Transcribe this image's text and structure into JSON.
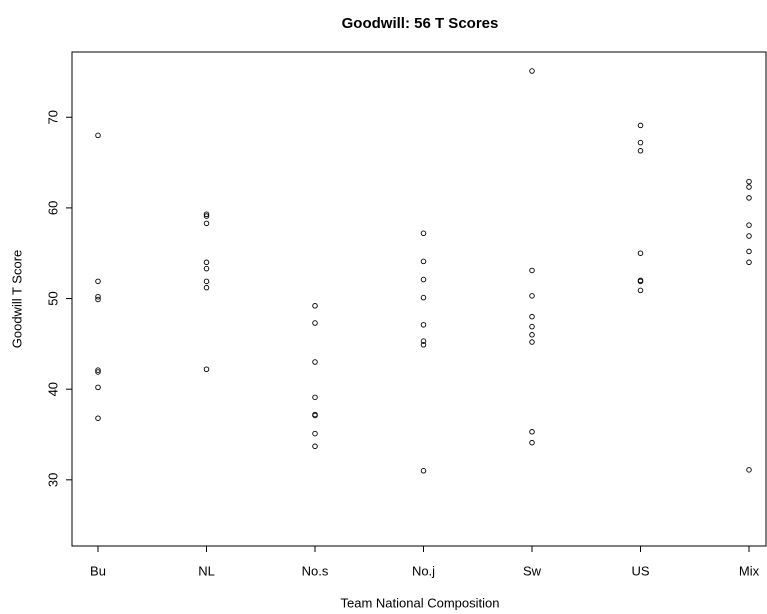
{
  "chart_data": {
    "type": "strip",
    "title": "Goodwill: 56 T Scores",
    "x_label": "Team National Composition",
    "y_label": "Goodwill T Score",
    "categories": [
      "Bu",
      "NL",
      "No.s",
      "No.j",
      "Sw",
      "US",
      "Mix"
    ],
    "values": [
      [
        68.0,
        51.9,
        50.2,
        49.9,
        42.1,
        41.9,
        40.2,
        36.8
      ],
      [
        59.3,
        59.1,
        58.3,
        54.0,
        53.3,
        51.9,
        51.2,
        42.2
      ],
      [
        49.2,
        47.3,
        43.0,
        39.1,
        37.2,
        37.1,
        35.1,
        33.7
      ],
      [
        57.2,
        54.1,
        52.1,
        50.1,
        47.1,
        45.3,
        44.9,
        31.0
      ],
      [
        75.1,
        53.1,
        50.3,
        48.0,
        46.9,
        46.0,
        45.2,
        35.3,
        34.1
      ],
      [
        69.1,
        67.2,
        66.3,
        55.0,
        52.0,
        51.9,
        50.9
      ],
      [
        62.9,
        62.3,
        61.1,
        58.1,
        56.9,
        55.2,
        54.0,
        31.1
      ]
    ],
    "color": "#000000",
    "ylim": [
      22.7,
      77.2
    ],
    "yticks": [
      30,
      40,
      50,
      60,
      70
    ]
  }
}
